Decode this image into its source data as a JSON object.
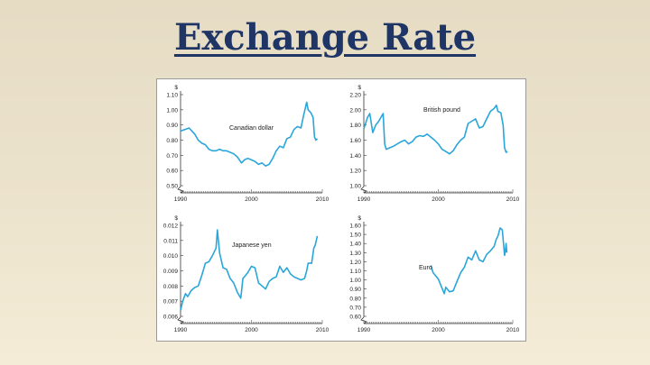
{
  "slide": {
    "title": "Exchange Rate"
  },
  "colors": {
    "line": "#2aa6d9",
    "axis": "#333333",
    "title": "#1f3566"
  },
  "chart_data": [
    {
      "type": "line",
      "title": "",
      "series_label": "Canadian dollar",
      "ylabel": "$",
      "xlabel": "",
      "xlim": [
        1990,
        2010
      ],
      "ylim": [
        0.5,
        1.1
      ],
      "axis_break": true,
      "x_ticks": [
        "1990",
        "2000",
        "2010"
      ],
      "y_ticks": [
        "1.10",
        "1.00",
        "0.90",
        "0.80",
        "0.70",
        "0.60",
        "0.50"
      ],
      "series": [
        {
          "values": [
            [
              1990,
              0.86
            ],
            [
              1990.6,
              0.87
            ],
            [
              1991.2,
              0.88
            ],
            [
              1991.6,
              0.86
            ],
            [
              1992,
              0.84
            ],
            [
              1992.5,
              0.8
            ],
            [
              1993,
              0.78
            ],
            [
              1993.5,
              0.77
            ],
            [
              1994,
              0.74
            ],
            [
              1994.5,
              0.73
            ],
            [
              1995,
              0.73
            ],
            [
              1995.5,
              0.74
            ],
            [
              1996,
              0.73
            ],
            [
              1996.5,
              0.73
            ],
            [
              1997,
              0.72
            ],
            [
              1997.5,
              0.71
            ],
            [
              1998,
              0.69
            ],
            [
              1998.6,
              0.65
            ],
            [
              1999,
              0.67
            ],
            [
              1999.5,
              0.68
            ],
            [
              2000,
              0.67
            ],
            [
              2000.5,
              0.66
            ],
            [
              2001,
              0.64
            ],
            [
              2001.5,
              0.65
            ],
            [
              2002,
              0.63
            ],
            [
              2002.5,
              0.64
            ],
            [
              2003,
              0.68
            ],
            [
              2003.5,
              0.73
            ],
            [
              2004,
              0.76
            ],
            [
              2004.5,
              0.75
            ],
            [
              2005,
              0.81
            ],
            [
              2005.5,
              0.82
            ],
            [
              2006,
              0.87
            ],
            [
              2006.5,
              0.89
            ],
            [
              2007,
              0.88
            ],
            [
              2007.3,
              0.95
            ],
            [
              2007.8,
              1.05
            ],
            [
              2008,
              1.0
            ],
            [
              2008.4,
              0.98
            ],
            [
              2008.7,
              0.95
            ],
            [
              2008.9,
              0.82
            ],
            [
              2009.1,
              0.8
            ],
            [
              2009.3,
              0.81
            ]
          ]
        }
      ]
    },
    {
      "type": "line",
      "title": "",
      "series_label": "British pound",
      "ylabel": "$",
      "xlabel": "",
      "xlim": [
        1990,
        2010
      ],
      "ylim": [
        1.0,
        2.2
      ],
      "axis_break": true,
      "x_ticks": [
        "1990",
        "2000",
        "2010"
      ],
      "y_ticks": [
        "2.20",
        "2.00",
        "1.80",
        "1.60",
        "1.40",
        "1.20",
        "1.00"
      ],
      "series": [
        {
          "values": [
            [
              1990,
              1.75
            ],
            [
              1990.5,
              1.9
            ],
            [
              1990.8,
              1.95
            ],
            [
              1991.2,
              1.7
            ],
            [
              1991.6,
              1.8
            ],
            [
              1992,
              1.85
            ],
            [
              1992.6,
              1.95
            ],
            [
              1992.8,
              1.55
            ],
            [
              1993,
              1.48
            ],
            [
              1993.5,
              1.5
            ],
            [
              1994,
              1.52
            ],
            [
              1994.5,
              1.55
            ],
            [
              1995,
              1.58
            ],
            [
              1995.5,
              1.6
            ],
            [
              1996,
              1.55
            ],
            [
              1996.5,
              1.58
            ],
            [
              1997,
              1.64
            ],
            [
              1997.5,
              1.66
            ],
            [
              1998,
              1.65
            ],
            [
              1998.5,
              1.68
            ],
            [
              1999,
              1.64
            ],
            [
              1999.5,
              1.6
            ],
            [
              2000,
              1.55
            ],
            [
              2000.5,
              1.48
            ],
            [
              2001,
              1.45
            ],
            [
              2001.5,
              1.42
            ],
            [
              2002,
              1.46
            ],
            [
              2002.5,
              1.54
            ],
            [
              2003,
              1.6
            ],
            [
              2003.5,
              1.64
            ],
            [
              2004,
              1.82
            ],
            [
              2004.5,
              1.85
            ],
            [
              2005,
              1.88
            ],
            [
              2005.5,
              1.76
            ],
            [
              2006,
              1.78
            ],
            [
              2006.5,
              1.88
            ],
            [
              2007,
              1.98
            ],
            [
              2007.5,
              2.02
            ],
            [
              2007.8,
              2.06
            ],
            [
              2008,
              1.98
            ],
            [
              2008.4,
              1.96
            ],
            [
              2008.7,
              1.8
            ],
            [
              2008.9,
              1.5
            ],
            [
              2009.1,
              1.44
            ],
            [
              2009.3,
              1.45
            ]
          ]
        }
      ]
    },
    {
      "type": "line",
      "title": "",
      "series_label": "Japanese yen",
      "ylabel": "$",
      "xlabel": "",
      "xlim": [
        1990,
        2010
      ],
      "ylim": [
        0.006,
        0.012
      ],
      "axis_break": true,
      "x_ticks": [
        "1990",
        "2000",
        "2010"
      ],
      "y_ticks": [
        "0.012",
        "0.011",
        "0.010",
        "0.009",
        "0.008",
        "0.007",
        "0.006"
      ],
      "series": [
        {
          "values": [
            [
              1990,
              0.0064
            ],
            [
              1990.3,
              0.007
            ],
            [
              1990.7,
              0.0075
            ],
            [
              1991,
              0.0073
            ],
            [
              1991.5,
              0.0077
            ],
            [
              1992,
              0.0079
            ],
            [
              1992.5,
              0.008
            ],
            [
              1993,
              0.0087
            ],
            [
              1993.5,
              0.0095
            ],
            [
              1994,
              0.0096
            ],
            [
              1994.5,
              0.01
            ],
            [
              1995,
              0.0105
            ],
            [
              1995.2,
              0.0117
            ],
            [
              1995.5,
              0.0102
            ],
            [
              1995.8,
              0.0096
            ],
            [
              1996,
              0.0092
            ],
            [
              1996.5,
              0.0091
            ],
            [
              1997,
              0.0085
            ],
            [
              1997.5,
              0.0082
            ],
            [
              1998,
              0.0076
            ],
            [
              1998.5,
              0.0072
            ],
            [
              1998.8,
              0.0085
            ],
            [
              1999,
              0.0086
            ],
            [
              1999.5,
              0.0089
            ],
            [
              2000,
              0.0093
            ],
            [
              2000.5,
              0.0092
            ],
            [
              2001,
              0.0082
            ],
            [
              2001.5,
              0.008
            ],
            [
              2002,
              0.0078
            ],
            [
              2002.5,
              0.0083
            ],
            [
              2003,
              0.0085
            ],
            [
              2003.5,
              0.0086
            ],
            [
              2004,
              0.0093
            ],
            [
              2004.5,
              0.0089
            ],
            [
              2005,
              0.0092
            ],
            [
              2005.5,
              0.0088
            ],
            [
              2006,
              0.0086
            ],
            [
              2006.5,
              0.0085
            ],
            [
              2007,
              0.0084
            ],
            [
              2007.5,
              0.0085
            ],
            [
              2007.8,
              0.009
            ],
            [
              2008,
              0.0095
            ],
            [
              2008.5,
              0.0095
            ],
            [
              2008.8,
              0.0105
            ],
            [
              2009,
              0.0107
            ],
            [
              2009.3,
              0.0113
            ]
          ]
        }
      ]
    },
    {
      "type": "line",
      "title": "",
      "series_label": "Euro",
      "ylabel": "$",
      "xlabel": "",
      "xlim": [
        1990,
        2010
      ],
      "ylim": [
        0.6,
        1.6
      ],
      "axis_break": true,
      "x_ticks": [
        "1990",
        "2000",
        "2010"
      ],
      "y_ticks": [
        "1.60",
        "1.50",
        "1.40",
        "1.30",
        "1.20",
        "1.10",
        "1.00",
        "0.90",
        "0.80",
        "0.70",
        "0.60"
      ],
      "series": [
        {
          "values": [
            [
              1999,
              1.16
            ],
            [
              1999.3,
              1.08
            ],
            [
              1999.6,
              1.05
            ],
            [
              2000,
              1.01
            ],
            [
              2000.4,
              0.93
            ],
            [
              2000.8,
              0.85
            ],
            [
              2001,
              0.92
            ],
            [
              2001.5,
              0.87
            ],
            [
              2002,
              0.88
            ],
            [
              2002.5,
              0.98
            ],
            [
              2003,
              1.08
            ],
            [
              2003.5,
              1.14
            ],
            [
              2004,
              1.25
            ],
            [
              2004.5,
              1.22
            ],
            [
              2005,
              1.32
            ],
            [
              2005.5,
              1.22
            ],
            [
              2006,
              1.2
            ],
            [
              2006.5,
              1.28
            ],
            [
              2007,
              1.32
            ],
            [
              2007.5,
              1.37
            ],
            [
              2007.8,
              1.45
            ],
            [
              2008,
              1.48
            ],
            [
              2008.3,
              1.57
            ],
            [
              2008.6,
              1.55
            ],
            [
              2008.9,
              1.27
            ],
            [
              2009,
              1.32
            ],
            [
              2009.1,
              1.4
            ],
            [
              2009.2,
              1.3
            ]
          ]
        }
      ]
    }
  ]
}
